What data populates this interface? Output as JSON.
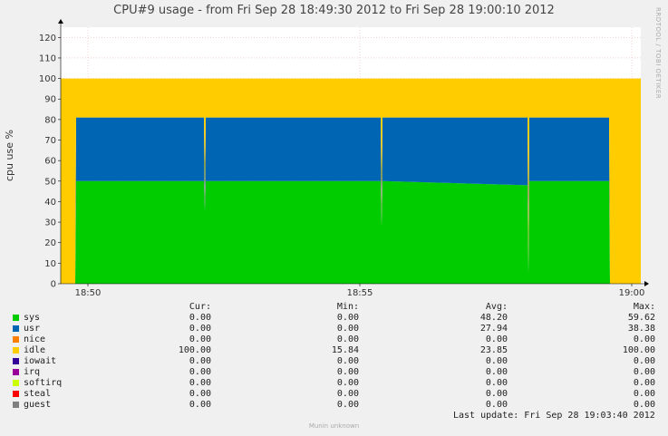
{
  "chart_data": {
    "type": "area",
    "title": "CPU#9 usage - from Fri Sep 28 18:49:30 2012 to Fri Sep 28 19:00:10 2012",
    "ylabel": "cpu use %",
    "xlabel": "",
    "ylim": [
      0,
      125
    ],
    "yticks": [
      0,
      10,
      20,
      30,
      40,
      50,
      60,
      70,
      80,
      90,
      100,
      110,
      120
    ],
    "xticks": [
      "18:50",
      "18:55",
      "19:00"
    ],
    "xtick_times": [
      "18:50",
      "18:55",
      "19:00"
    ],
    "xrange": [
      "18:49:30",
      "19:00:10"
    ],
    "grid": true,
    "stacked": true,
    "series": [
      {
        "name": "sys",
        "color": "#00cc00",
        "profile": [
          [
            "18:49:30",
            0
          ],
          [
            "18:49:46",
            0
          ],
          [
            "18:49:47",
            50
          ],
          [
            "18:52:08",
            50
          ],
          [
            "18:52:09",
            36
          ],
          [
            "18:52:10",
            50
          ],
          [
            "18:55:23",
            50
          ],
          [
            "18:55:24",
            28
          ],
          [
            "18:55:25",
            50
          ],
          [
            "18:58:05",
            48
          ],
          [
            "18:58:06",
            5
          ],
          [
            "18:58:07",
            50
          ],
          [
            "18:59:35",
            50
          ],
          [
            "18:59:36",
            0
          ],
          [
            "19:00:10",
            0
          ]
        ]
      },
      {
        "name": "usr",
        "color": "#0066b3",
        "profile": [
          [
            "18:49:30",
            0
          ],
          [
            "18:49:46",
            0
          ],
          [
            "18:49:47",
            31
          ],
          [
            "18:52:08",
            31
          ],
          [
            "18:52:09",
            0
          ],
          [
            "18:52:10",
            31
          ],
          [
            "18:55:23",
            31
          ],
          [
            "18:55:24",
            0
          ],
          [
            "18:55:25",
            31
          ],
          [
            "18:58:05",
            33
          ],
          [
            "18:58:06",
            0
          ],
          [
            "18:58:07",
            31
          ],
          [
            "18:59:35",
            31
          ],
          [
            "18:59:36",
            0
          ],
          [
            "19:00:10",
            0
          ]
        ]
      },
      {
        "name": "nice",
        "color": "#ff8000",
        "profile": []
      },
      {
        "name": "idle",
        "color": "#ffcc00",
        "profile": [
          [
            "18:49:30",
            100
          ],
          [
            "18:49:46",
            100
          ],
          [
            "18:49:47",
            19
          ],
          [
            "18:52:08",
            19
          ],
          [
            "18:52:09",
            64
          ],
          [
            "18:52:10",
            19
          ],
          [
            "18:55:23",
            19
          ],
          [
            "18:55:24",
            72
          ],
          [
            "18:55:25",
            19
          ],
          [
            "18:58:05",
            19
          ],
          [
            "18:58:06",
            95
          ],
          [
            "18:58:07",
            19
          ],
          [
            "18:59:35",
            19
          ],
          [
            "18:59:36",
            100
          ],
          [
            "19:00:10",
            100
          ]
        ]
      },
      {
        "name": "iowait",
        "color": "#330099",
        "profile": []
      },
      {
        "name": "irq",
        "color": "#990099",
        "profile": []
      },
      {
        "name": "softirq",
        "color": "#ccff00",
        "profile": []
      },
      {
        "name": "steal",
        "color": "#ff0000",
        "profile": []
      },
      {
        "name": "guest",
        "color": "#808080",
        "profile": []
      }
    ]
  },
  "side_credit": "RRDTOOL / TOBI OETIKER",
  "legend": {
    "headers": {
      "cur": "Cur:",
      "min": "Min:",
      "avg": "Avg:",
      "max": "Max:"
    },
    "rows": [
      {
        "name": "sys",
        "color": "#00cc00",
        "cur": "0.00",
        "min": "0.00",
        "avg": "48.20",
        "max": "59.62"
      },
      {
        "name": "usr",
        "color": "#0066b3",
        "cur": "0.00",
        "min": "0.00",
        "avg": "27.94",
        "max": "38.38"
      },
      {
        "name": "nice",
        "color": "#ff8000",
        "cur": "0.00",
        "min": "0.00",
        "avg": "0.00",
        "max": "0.00"
      },
      {
        "name": "idle",
        "color": "#ffcc00",
        "cur": "100.00",
        "min": "15.84",
        "avg": "23.85",
        "max": "100.00"
      },
      {
        "name": "iowait",
        "color": "#330099",
        "cur": "0.00",
        "min": "0.00",
        "avg": "0.00",
        "max": "0.00"
      },
      {
        "name": "irq",
        "color": "#990099",
        "cur": "0.00",
        "min": "0.00",
        "avg": "0.00",
        "max": "0.00"
      },
      {
        "name": "softirq",
        "color": "#ccff00",
        "cur": "0.00",
        "min": "0.00",
        "avg": "0.00",
        "max": "0.00"
      },
      {
        "name": "steal",
        "color": "#ff0000",
        "cur": "0.00",
        "min": "0.00",
        "avg": "0.00",
        "max": "0.00"
      },
      {
        "name": "guest",
        "color": "#808080",
        "cur": "0.00",
        "min": "0.00",
        "avg": "0.00",
        "max": "0.00"
      }
    ]
  },
  "last_update": "Last update: Fri Sep 28 19:03:40 2012",
  "footer": "Munin unknown"
}
